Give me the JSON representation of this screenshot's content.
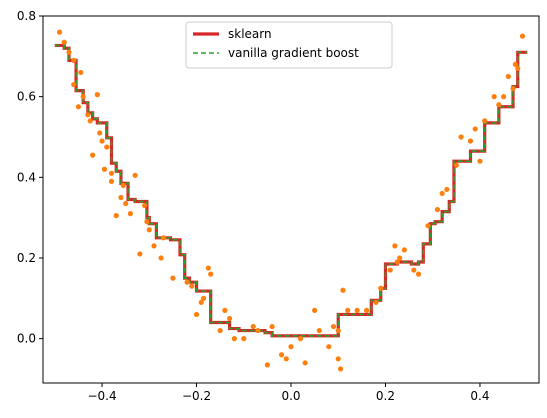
{
  "chart_data": {
    "type": "line",
    "title": "",
    "xlabel": "",
    "ylabel": "",
    "xlim": [
      -0.525,
      0.525
    ],
    "ylim": [
      -0.11,
      0.8
    ],
    "grid": false,
    "legend_position": "top-center",
    "x_ticks": [
      -0.4,
      -0.2,
      0.0,
      0.2,
      0.4
    ],
    "x_tick_labels": [
      "−0.4",
      "−0.2",
      "0.0",
      "0.2",
      "0.4"
    ],
    "y_ticks": [
      0.0,
      0.2,
      0.4,
      0.6,
      0.8
    ],
    "y_tick_labels": [
      "0.0",
      "0.2",
      "0.4",
      "0.6",
      "0.8"
    ],
    "legend": [
      {
        "label": "sklearn",
        "color": "#d62728",
        "style": "solid"
      },
      {
        "label": "vanilla gradient boost",
        "color": "#2ca02c",
        "style": "dashed"
      }
    ],
    "series": [
      {
        "name": "sklearn",
        "kind": "step",
        "color": "#d62728",
        "style": "solid",
        "x": [
          -0.5,
          -0.48,
          -0.47,
          -0.455,
          -0.44,
          -0.43,
          -0.42,
          -0.41,
          -0.39,
          -0.38,
          -0.37,
          -0.36,
          -0.345,
          -0.33,
          -0.305,
          -0.3,
          -0.285,
          -0.255,
          -0.235,
          -0.225,
          -0.215,
          -0.2,
          -0.18,
          -0.17,
          -0.14,
          -0.13,
          -0.11,
          -0.1,
          -0.055,
          -0.045,
          -0.04,
          0.1,
          0.12,
          0.17,
          0.19,
          0.2,
          0.215,
          0.225,
          0.24,
          0.255,
          0.27,
          0.28,
          0.295,
          0.305,
          0.32,
          0.335,
          0.345,
          0.37,
          0.38,
          0.395,
          0.41,
          0.42,
          0.44,
          0.46,
          0.47,
          0.48,
          0.5
        ],
        "y": [
          0.727,
          0.72,
          0.69,
          0.615,
          0.585,
          0.56,
          0.545,
          0.535,
          0.498,
          0.435,
          0.415,
          0.385,
          0.345,
          0.34,
          0.3,
          0.285,
          0.25,
          0.245,
          0.208,
          0.15,
          0.14,
          0.118,
          0.118,
          0.04,
          0.04,
          0.025,
          0.02,
          0.02,
          0.015,
          0.015,
          0.007,
          0.06,
          0.06,
          0.095,
          0.125,
          0.185,
          0.185,
          0.19,
          0.19,
          0.185,
          0.19,
          0.235,
          0.285,
          0.29,
          0.315,
          0.34,
          0.44,
          0.44,
          0.465,
          0.465,
          0.535,
          0.535,
          0.575,
          0.575,
          0.625,
          0.71,
          0.71
        ]
      },
      {
        "name": "vanilla gradient boost",
        "kind": "step",
        "color": "#2ca02c",
        "style": "dashed",
        "x": [
          -0.5,
          -0.48,
          -0.47,
          -0.455,
          -0.44,
          -0.43,
          -0.42,
          -0.41,
          -0.39,
          -0.38,
          -0.37,
          -0.36,
          -0.345,
          -0.33,
          -0.305,
          -0.3,
          -0.285,
          -0.255,
          -0.235,
          -0.225,
          -0.215,
          -0.2,
          -0.18,
          -0.17,
          -0.14,
          -0.13,
          -0.11,
          -0.1,
          -0.055,
          -0.045,
          -0.04,
          0.1,
          0.12,
          0.17,
          0.19,
          0.2,
          0.215,
          0.225,
          0.24,
          0.255,
          0.27,
          0.28,
          0.295,
          0.305,
          0.32,
          0.335,
          0.345,
          0.37,
          0.38,
          0.395,
          0.41,
          0.42,
          0.44,
          0.46,
          0.47,
          0.48,
          0.5
        ],
        "y": [
          0.727,
          0.72,
          0.69,
          0.615,
          0.585,
          0.56,
          0.545,
          0.535,
          0.498,
          0.435,
          0.415,
          0.385,
          0.345,
          0.34,
          0.3,
          0.285,
          0.25,
          0.245,
          0.208,
          0.15,
          0.14,
          0.118,
          0.118,
          0.04,
          0.04,
          0.025,
          0.02,
          0.02,
          0.015,
          0.015,
          0.007,
          0.06,
          0.06,
          0.095,
          0.125,
          0.185,
          0.185,
          0.19,
          0.19,
          0.185,
          0.19,
          0.235,
          0.285,
          0.29,
          0.315,
          0.34,
          0.44,
          0.44,
          0.465,
          0.465,
          0.535,
          0.535,
          0.575,
          0.575,
          0.625,
          0.71,
          0.71
        ]
      }
    ],
    "points": {
      "color": "#ff7f0e",
      "x": [
        -0.49,
        -0.48,
        -0.47,
        -0.46,
        -0.46,
        -0.45,
        -0.445,
        -0.44,
        -0.43,
        -0.425,
        -0.42,
        -0.41,
        -0.405,
        -0.4,
        -0.395,
        -0.39,
        -0.38,
        -0.38,
        -0.37,
        -0.36,
        -0.355,
        -0.35,
        -0.34,
        -0.33,
        -0.32,
        -0.31,
        -0.305,
        -0.3,
        -0.29,
        -0.275,
        -0.27,
        -0.25,
        -0.22,
        -0.21,
        -0.2,
        -0.19,
        -0.185,
        -0.175,
        -0.17,
        -0.15,
        -0.14,
        -0.13,
        -0.12,
        -0.1,
        -0.08,
        -0.07,
        -0.05,
        -0.04,
        -0.02,
        -0.01,
        0.0,
        0.02,
        0.03,
        0.05,
        0.06,
        0.08,
        0.09,
        0.1,
        0.1,
        0.105,
        0.11,
        0.12,
        0.14,
        0.16,
        0.18,
        0.19,
        0.21,
        0.22,
        0.225,
        0.23,
        0.24,
        0.26,
        0.27,
        0.29,
        0.31,
        0.32,
        0.33,
        0.35,
        0.36,
        0.38,
        0.39,
        0.4,
        0.41,
        0.43,
        0.44,
        0.45,
        0.46,
        0.47,
        0.475,
        0.48,
        0.49
      ],
      "y": [
        0.76,
        0.735,
        0.71,
        0.69,
        0.63,
        0.575,
        0.66,
        0.6,
        0.555,
        0.54,
        0.455,
        0.605,
        0.51,
        0.49,
        0.42,
        0.475,
        0.41,
        0.39,
        0.305,
        0.35,
        0.38,
        0.335,
        0.31,
        0.405,
        0.21,
        0.33,
        0.29,
        0.27,
        0.23,
        0.2,
        0.25,
        0.15,
        0.14,
        0.13,
        0.06,
        0.09,
        0.1,
        0.175,
        0.16,
        0.02,
        0.07,
        0.05,
        0.0,
        0.0,
        0.03,
        0.02,
        -0.065,
        0.03,
        -0.04,
        -0.05,
        -0.02,
        0.0,
        -0.06,
        0.07,
        0.02,
        -0.02,
        0.03,
        0.02,
        -0.05,
        -0.075,
        0.12,
        0.07,
        0.07,
        0.07,
        0.09,
        0.125,
        0.17,
        0.23,
        0.19,
        0.2,
        0.22,
        0.17,
        0.16,
        0.28,
        0.32,
        0.36,
        0.37,
        0.43,
        0.5,
        0.49,
        0.52,
        0.44,
        0.54,
        0.6,
        0.58,
        0.6,
        0.65,
        0.62,
        0.68,
        0.67,
        0.75
      ]
    }
  }
}
